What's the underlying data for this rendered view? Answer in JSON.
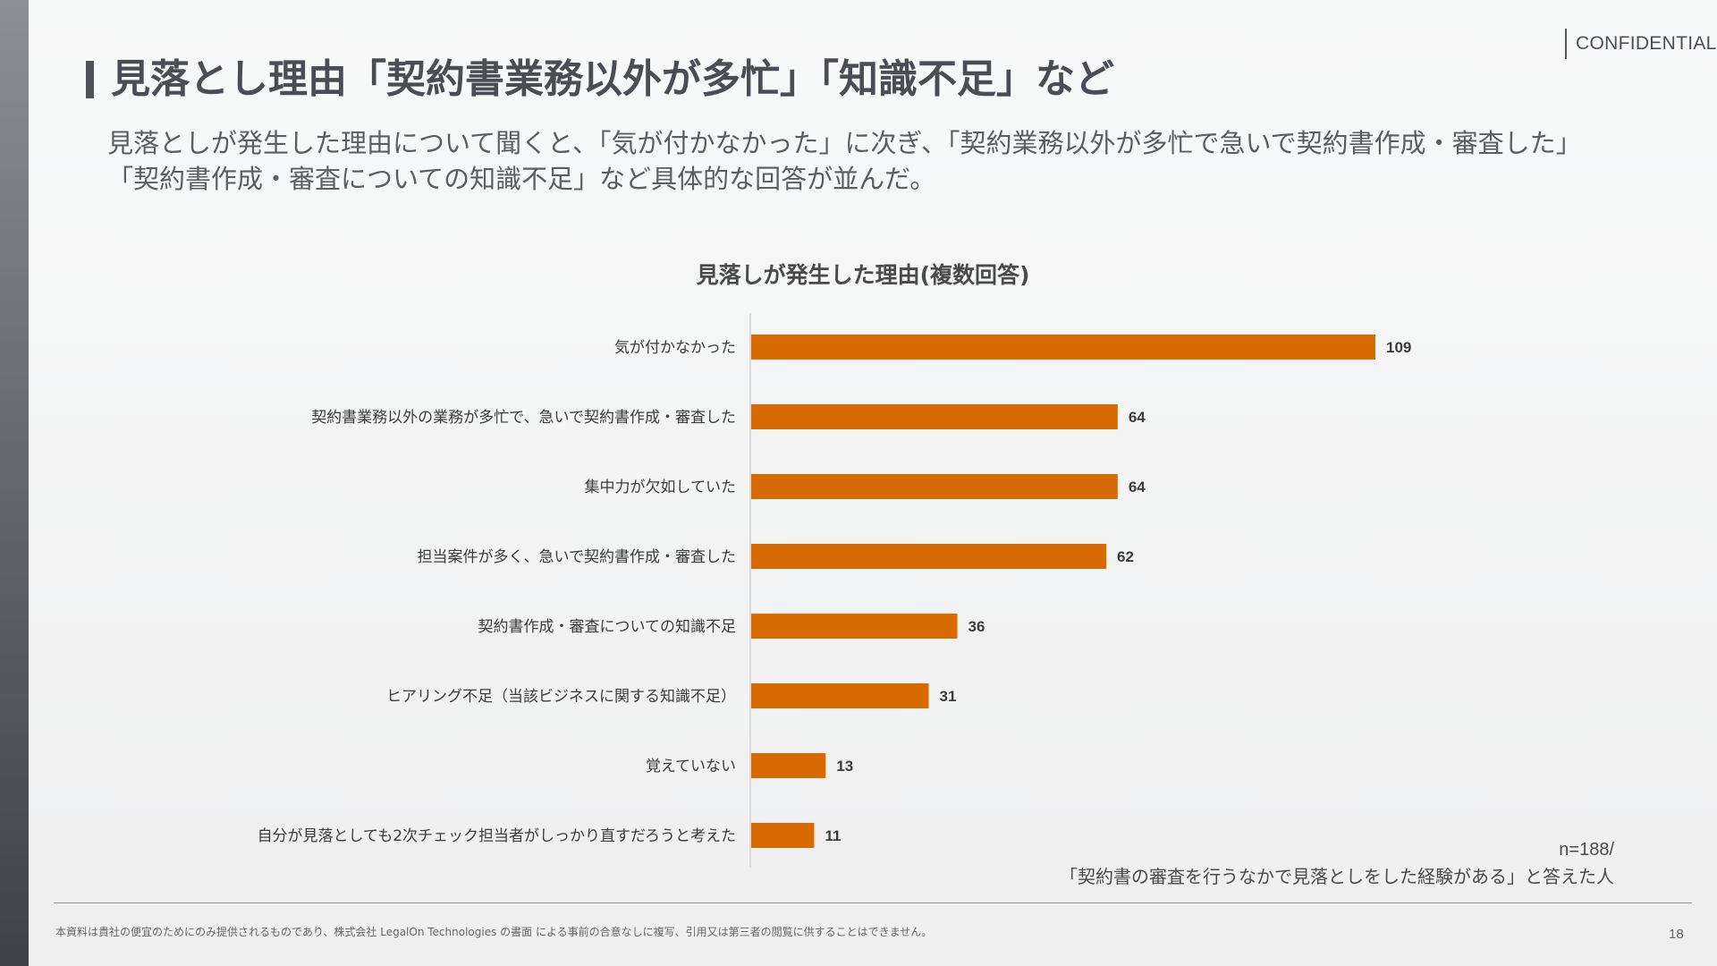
{
  "header": {
    "confidential": "CONFIDENTIAL",
    "title": "見落とし理由「契約書業務以外が多忙」「知識不足」など",
    "subtitle": "見落としが発生した理由について聞くと、「気が付かなかった」に次ぎ、「契約業務以外が多忙で急いで契約書作成・審査した」「契約書作成・審査についての知識不足」など具体的な回答が並んだ。"
  },
  "chart_data": {
    "type": "bar",
    "orientation": "horizontal",
    "title": "見落しが発生した理由(複数回答)",
    "categories": [
      "気が付かなかった",
      "契約書業務以外の業務が多忙で、急いで契約書作成・審査した",
      "集中力が欠如していた",
      "担当案件が多く、急いで契約書作成・審査した",
      "契約書作成・審査についての知識不足",
      "ヒアリング不足（当該ビジネスに関する知識不足）",
      "覚えていない",
      "自分が見落としても2次チェック担当者がしっかり直すだろうと考えた"
    ],
    "values": [
      109,
      64,
      64,
      62,
      36,
      31,
      13,
      11
    ],
    "xlim": [
      0,
      109
    ],
    "bar_color": "#d86a03",
    "axis_color": "#d4d4d4",
    "grid": false,
    "legend": "none"
  },
  "notes": {
    "n": "n=188/",
    "respondents": "「契約書の審査を行うなかで見落としをした経験がある」と答えた人"
  },
  "footer": {
    "disclaimer": "本資料は貴社の便宜のためにのみ提供されるものであり、株式会社 LegalOn Technologies の書面 による事前の合意なしに複写、引用又は第三者の閲覧に供することはできません。",
    "page": "18"
  }
}
